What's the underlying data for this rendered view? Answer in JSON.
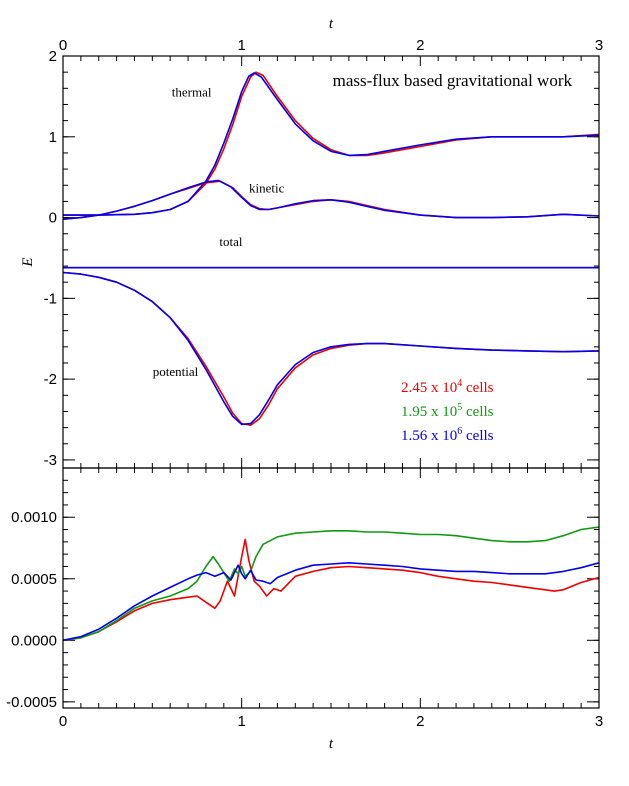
{
  "chart_data": [
    {
      "type": "line",
      "panel": "top",
      "title": "mass-flux based gravitational work",
      "xlabel": "t",
      "ylabel": "E",
      "xlim": [
        0,
        3
      ],
      "ylim": [
        -3.1,
        2.0
      ],
      "xticks": [
        "0",
        "1",
        "2",
        "3"
      ],
      "yticks": [
        {
          "value": 2,
          "label": "2"
        },
        {
          "value": 1,
          "label": "1"
        },
        {
          "value": 0,
          "label": "0"
        },
        {
          "value": -1,
          "label": "-1"
        },
        {
          "value": -2,
          "label": "-2"
        },
        {
          "value": -3,
          "label": "-3"
        }
      ],
      "annotations": [
        {
          "text": "thermal",
          "t": 0.72,
          "E": 1.5
        },
        {
          "text": "kinetic",
          "t": 1.14,
          "E": 0.31
        },
        {
          "text": "total",
          "t": 0.94,
          "E": -0.35
        },
        {
          "text": "potential",
          "t": 0.63,
          "E": -1.96
        }
      ],
      "legend": [
        {
          "label": "2.45 x 10",
          "exp": "4",
          "suffix": " cells",
          "color": "#ee0000"
        },
        {
          "label": "1.95 x 10",
          "exp": "5",
          "suffix": " cells",
          "color": "#119911"
        },
        {
          "label": "1.56 x 10",
          "exp": "6",
          "suffix": " cells",
          "color": "#0000ee"
        }
      ],
      "series": [
        {
          "name": "thermal",
          "color": "#ee0000",
          "x": [
            0,
            0.2,
            0.4,
            0.5,
            0.6,
            0.7,
            0.8,
            0.85,
            0.9,
            0.95,
            1.0,
            1.05,
            1.08,
            1.12,
            1.2,
            1.3,
            1.4,
            1.5,
            1.6,
            1.7,
            1.8,
            2.0,
            2.2,
            2.4,
            2.6,
            2.8,
            3.0
          ],
          "y": [
            0.03,
            0.03,
            0.04,
            0.06,
            0.1,
            0.2,
            0.42,
            0.6,
            0.85,
            1.15,
            1.5,
            1.74,
            1.8,
            1.76,
            1.5,
            1.2,
            0.98,
            0.84,
            0.77,
            0.77,
            0.8,
            0.88,
            0.96,
            1.0,
            1.0,
            1.0,
            1.03
          ]
        },
        {
          "name": "thermal",
          "color": "#0000ee",
          "x": [
            0,
            0.2,
            0.4,
            0.5,
            0.6,
            0.7,
            0.8,
            0.85,
            0.9,
            0.95,
            1.0,
            1.04,
            1.07,
            1.11,
            1.2,
            1.3,
            1.4,
            1.5,
            1.6,
            1.7,
            1.8,
            2.0,
            2.2,
            2.4,
            2.6,
            2.8,
            3.0
          ],
          "y": [
            0.03,
            0.03,
            0.04,
            0.06,
            0.1,
            0.2,
            0.45,
            0.65,
            0.92,
            1.22,
            1.56,
            1.75,
            1.79,
            1.74,
            1.46,
            1.16,
            0.95,
            0.82,
            0.77,
            0.78,
            0.82,
            0.9,
            0.97,
            1.0,
            1.0,
            1.0,
            1.02
          ]
        },
        {
          "name": "kinetic",
          "color": "#ee0000",
          "x": [
            0,
            0.1,
            0.2,
            0.3,
            0.4,
            0.5,
            0.6,
            0.7,
            0.8,
            0.88,
            0.95,
            1.0,
            1.05,
            1.1,
            1.15,
            1.2,
            1.3,
            1.4,
            1.5,
            1.6,
            1.7,
            1.8,
            2.0,
            2.2,
            2.4,
            2.6,
            2.8,
            3.0
          ],
          "y": [
            -0.02,
            0.0,
            0.03,
            0.08,
            0.14,
            0.21,
            0.29,
            0.36,
            0.43,
            0.45,
            0.37,
            0.26,
            0.16,
            0.11,
            0.1,
            0.12,
            0.16,
            0.2,
            0.22,
            0.2,
            0.15,
            0.1,
            0.03,
            0.0,
            0.0,
            0.01,
            0.04,
            0.02
          ]
        },
        {
          "name": "kinetic",
          "color": "#0000ee",
          "x": [
            0,
            0.1,
            0.2,
            0.3,
            0.4,
            0.5,
            0.6,
            0.7,
            0.8,
            0.87,
            0.94,
            1.0,
            1.05,
            1.1,
            1.15,
            1.2,
            1.3,
            1.4,
            1.5,
            1.6,
            1.7,
            1.8,
            2.0,
            2.2,
            2.4,
            2.6,
            2.8,
            3.0
          ],
          "y": [
            -0.02,
            0.0,
            0.03,
            0.08,
            0.14,
            0.21,
            0.29,
            0.37,
            0.44,
            0.46,
            0.38,
            0.25,
            0.15,
            0.1,
            0.1,
            0.12,
            0.17,
            0.21,
            0.22,
            0.19,
            0.14,
            0.09,
            0.03,
            0.0,
            0.0,
            0.01,
            0.04,
            0.02
          ]
        },
        {
          "name": "total",
          "color": "#ee0000",
          "x": [
            0,
            3
          ],
          "y": [
            -0.62,
            -0.62
          ]
        },
        {
          "name": "total",
          "color": "#0000ee",
          "x": [
            0,
            3
          ],
          "y": [
            -0.62,
            -0.62
          ]
        },
        {
          "name": "potential",
          "color": "#ee0000",
          "x": [
            0,
            0.1,
            0.2,
            0.3,
            0.4,
            0.5,
            0.6,
            0.7,
            0.8,
            0.9,
            0.95,
            1.0,
            1.05,
            1.1,
            1.15,
            1.2,
            1.3,
            1.4,
            1.5,
            1.6,
            1.7,
            1.8,
            2.0,
            2.2,
            2.4,
            2.6,
            2.8,
            3.0
          ],
          "y": [
            -0.68,
            -0.7,
            -0.74,
            -0.8,
            -0.9,
            -1.04,
            -1.24,
            -1.5,
            -1.84,
            -2.22,
            -2.42,
            -2.55,
            -2.57,
            -2.49,
            -2.32,
            -2.12,
            -1.86,
            -1.7,
            -1.62,
            -1.58,
            -1.56,
            -1.56,
            -1.59,
            -1.62,
            -1.64,
            -1.65,
            -1.66,
            -1.65
          ]
        },
        {
          "name": "potential",
          "color": "#0000ee",
          "x": [
            0,
            0.1,
            0.2,
            0.3,
            0.4,
            0.5,
            0.6,
            0.7,
            0.8,
            0.9,
            0.95,
            1.0,
            1.05,
            1.1,
            1.15,
            1.2,
            1.3,
            1.4,
            1.5,
            1.6,
            1.7,
            1.8,
            2.0,
            2.2,
            2.4,
            2.6,
            2.8,
            3.0
          ],
          "y": [
            -0.68,
            -0.7,
            -0.74,
            -0.8,
            -0.9,
            -1.04,
            -1.24,
            -1.52,
            -1.88,
            -2.28,
            -2.46,
            -2.56,
            -2.55,
            -2.44,
            -2.26,
            -2.07,
            -1.82,
            -1.67,
            -1.6,
            -1.57,
            -1.56,
            -1.56,
            -1.59,
            -1.62,
            -1.64,
            -1.65,
            -1.66,
            -1.65
          ]
        }
      ]
    },
    {
      "type": "line",
      "panel": "bottom",
      "xlabel": "t",
      "ylabel": "",
      "xlim": [
        0,
        3
      ],
      "ylim": [
        -0.00055,
        0.0014
      ],
      "xticks": [
        "0",
        "1",
        "2",
        "3"
      ],
      "yticks": [
        {
          "value": 0.001,
          "label": "0.0010"
        },
        {
          "value": 0.0005,
          "label": "0.0005"
        },
        {
          "value": 0.0,
          "label": "0.0000"
        },
        {
          "value": -0.0005,
          "label": "-0.0005"
        }
      ],
      "series": [
        {
          "name": "2.45 x 10^4 cells",
          "color": "#ee0000",
          "x": [
            0,
            0.1,
            0.2,
            0.3,
            0.4,
            0.5,
            0.6,
            0.7,
            0.75,
            0.8,
            0.85,
            0.88,
            0.92,
            0.96,
            1.0,
            1.02,
            1.04,
            1.07,
            1.1,
            1.14,
            1.18,
            1.22,
            1.3,
            1.4,
            1.5,
            1.6,
            1.7,
            1.8,
            1.9,
            2.0,
            2.1,
            2.2,
            2.3,
            2.4,
            2.5,
            2.6,
            2.7,
            2.75,
            2.8,
            2.9,
            3.0
          ],
          "y": [
            0,
            2e-05,
            7e-05,
            0.00015,
            0.00024,
            0.0003,
            0.00033,
            0.00035,
            0.00036,
            0.00031,
            0.00026,
            0.00032,
            0.00048,
            0.00036,
            0.00068,
            0.00082,
            0.00065,
            0.00048,
            0.00044,
            0.00036,
            0.00042,
            0.0004,
            0.00052,
            0.00056,
            0.00059,
            0.0006,
            0.00059,
            0.00058,
            0.00057,
            0.00055,
            0.00052,
            0.0005,
            0.00048,
            0.00047,
            0.00045,
            0.00043,
            0.00041,
            0.0004,
            0.00041,
            0.00047,
            0.00051
          ]
        },
        {
          "name": "1.95 x 10^5 cells",
          "color": "#119911",
          "x": [
            0,
            0.1,
            0.2,
            0.3,
            0.4,
            0.5,
            0.6,
            0.7,
            0.75,
            0.8,
            0.84,
            0.87,
            0.9,
            0.93,
            0.96,
            0.98,
            1.0,
            1.02,
            1.05,
            1.08,
            1.12,
            1.2,
            1.3,
            1.4,
            1.5,
            1.6,
            1.7,
            1.8,
            1.9,
            2.0,
            2.1,
            2.2,
            2.3,
            2.4,
            2.5,
            2.6,
            2.7,
            2.8,
            2.9,
            3.0
          ],
          "y": [
            0,
            2e-05,
            7e-05,
            0.00016,
            0.00026,
            0.00032,
            0.00036,
            0.00042,
            0.00048,
            0.0006,
            0.00068,
            0.00062,
            0.00055,
            0.00048,
            0.00058,
            0.00054,
            0.0006,
            0.00052,
            0.00056,
            0.00068,
            0.00078,
            0.00084,
            0.00087,
            0.00088,
            0.00089,
            0.00089,
            0.00088,
            0.00088,
            0.00087,
            0.00086,
            0.00086,
            0.00085,
            0.00083,
            0.00081,
            0.0008,
            0.0008,
            0.00081,
            0.00085,
            0.0009,
            0.00092
          ]
        },
        {
          "name": "1.56 x 10^6 cells",
          "color": "#0000ee",
          "x": [
            0,
            0.1,
            0.2,
            0.3,
            0.4,
            0.5,
            0.6,
            0.7,
            0.75,
            0.8,
            0.85,
            0.9,
            0.94,
            0.98,
            1.0,
            1.02,
            1.05,
            1.08,
            1.12,
            1.16,
            1.2,
            1.3,
            1.4,
            1.5,
            1.6,
            1.7,
            1.8,
            1.9,
            2.0,
            2.1,
            2.2,
            2.3,
            2.4,
            2.5,
            2.6,
            2.7,
            2.8,
            2.9,
            3.0
          ],
          "y": [
            0,
            3e-05,
            9e-05,
            0.00018,
            0.00028,
            0.00036,
            0.00043,
            0.0005,
            0.00053,
            0.00055,
            0.00052,
            0.00055,
            0.00049,
            0.00061,
            0.00054,
            0.0005,
            0.00057,
            0.00049,
            0.00048,
            0.00046,
            0.00051,
            0.00057,
            0.00061,
            0.00062,
            0.00063,
            0.00062,
            0.00061,
            0.0006,
            0.00058,
            0.00057,
            0.00056,
            0.00056,
            0.00055,
            0.00054,
            0.00054,
            0.00054,
            0.00056,
            0.00059,
            0.00063
          ]
        }
      ]
    }
  ]
}
